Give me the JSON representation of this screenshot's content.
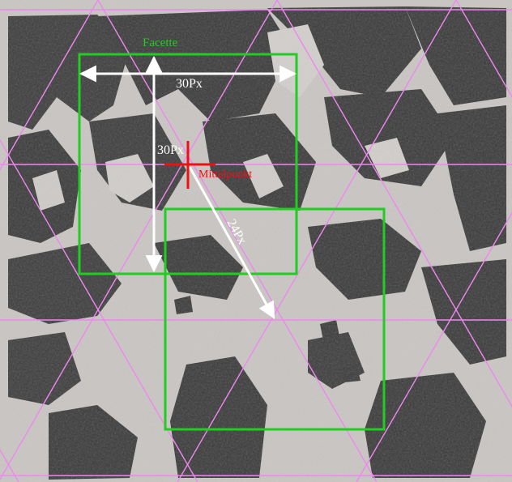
{
  "labels": {
    "facet": "Facette",
    "width": "30Px",
    "height": "30Px",
    "center": "Mittelpunkt",
    "offset": "24Px"
  },
  "colors": {
    "facet_box": "#22cc22",
    "grid_lines": "#ee88ee",
    "arrows": "#ffffff",
    "center_mark": "#ee1111",
    "image_dark": "#3a3a3a",
    "image_light": "#c9c6c3"
  }
}
